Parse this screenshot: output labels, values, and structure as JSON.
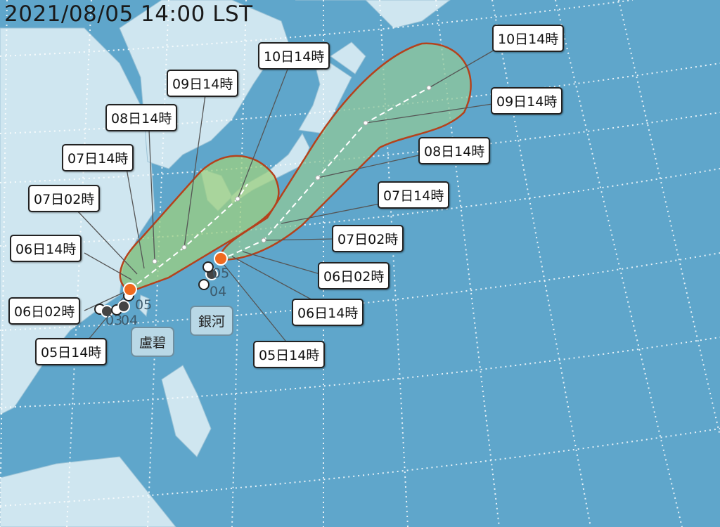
{
  "timestamp": "2021/08/05 14:00 LST",
  "colors": {
    "ocean": "#5fa6cb",
    "land": "#cfe6f0",
    "cone_outline": "#b5421c",
    "cone_fill": "#8fc79a",
    "current_position": "#f06a1e"
  },
  "storms": [
    {
      "name": "盧碧",
      "past_day_labels": [
        "05",
        "04",
        "03"
      ],
      "forecast_labels": [
        "05日14時",
        "06日02時",
        "06日14時",
        "07日02時",
        "07日14時",
        "08日14時",
        "09日14時",
        "10日14時"
      ]
    },
    {
      "name": "銀河",
      "past_day_labels": [
        "05",
        "04"
      ],
      "forecast_labels": [
        "05日14時",
        "06日02時",
        "06日14時",
        "07日02時",
        "07日14時",
        "08日14時",
        "09日14時",
        "10日14時"
      ]
    }
  ]
}
